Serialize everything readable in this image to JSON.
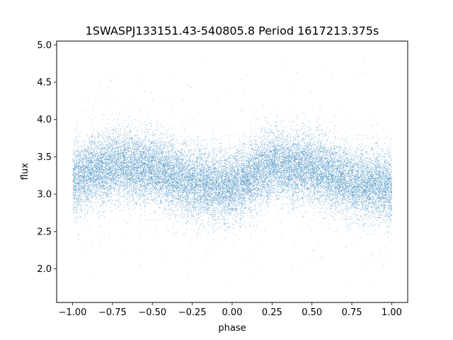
{
  "chart_data": {
    "type": "scatter",
    "title": "1SWASPJ133151.43-540805.8 Period 1617213.375s",
    "xlabel": "phase",
    "ylabel": "flux",
    "xlim": [
      -1.1,
      1.1
    ],
    "ylim": [
      1.55,
      5.05
    ],
    "xticks": [
      -1.0,
      -0.75,
      -0.5,
      -0.25,
      0.0,
      0.25,
      0.5,
      0.75,
      1.0
    ],
    "xtick_labels": [
      "−1.00",
      "−0.75",
      "−0.50",
      "−0.25",
      "0.00",
      "0.25",
      "0.50",
      "0.75",
      "1.00"
    ],
    "yticks": [
      2.0,
      2.5,
      3.0,
      3.5,
      4.0,
      4.5,
      5.0
    ],
    "ytick_labels": [
      "2.0",
      "2.5",
      "3.0",
      "3.5",
      "4.0",
      "4.5",
      "5.0"
    ],
    "grid": false,
    "legend": "none",
    "point_color": "#1f77b4",
    "series": [
      {
        "phase_range": [
          -1.0,
          1.0
        ],
        "typical_flux_range": [
          2.7,
          3.9
        ],
        "sparse_flux_range": [
          1.75,
          4.85
        ],
        "mean_flux_profile": [
          {
            "x": -1.0,
            "y": 3.2
          },
          {
            "x": -0.75,
            "y": 3.4
          },
          {
            "x": -0.5,
            "y": 3.35
          },
          {
            "x": -0.25,
            "y": 3.15
          },
          {
            "x": 0.0,
            "y": 3.1
          },
          {
            "x": 0.25,
            "y": 3.4
          },
          {
            "x": 0.5,
            "y": 3.35
          },
          {
            "x": 0.75,
            "y": 3.15
          },
          {
            "x": 1.0,
            "y": 3.1
          }
        ]
      }
    ]
  }
}
